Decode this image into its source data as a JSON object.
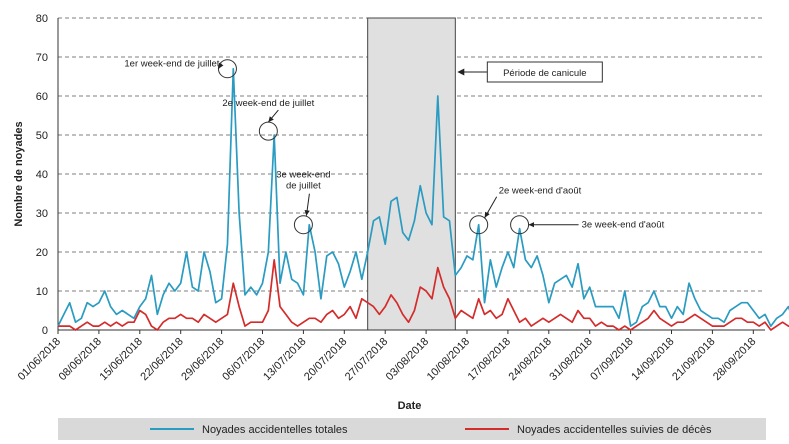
{
  "chart_data": {
    "type": "line",
    "xlabel": "Date",
    "ylabel": "Nombre de noyades",
    "ylim": [
      0,
      80
    ],
    "yticks": [
      0,
      10,
      20,
      30,
      40,
      50,
      60,
      70,
      80
    ],
    "grid": "horizontal dashed",
    "x_start": "2018-06-01",
    "x_end": "2018-09-30",
    "xtick_labels": [
      "01/06/2018",
      "08/06/2018",
      "15/06/2018",
      "22/06/2018",
      "29/06/2018",
      "06/07/2018",
      "13/07/2018",
      "20/07/2018",
      "27/07/2018",
      "03/08/2018",
      "10/08/2018",
      "17/08/2018",
      "24/08/2018",
      "31/08/2018",
      "07/09/2018",
      "14/09/2018",
      "21/09/2018",
      "28/09/2018"
    ],
    "legend_position": "bottom",
    "shaded_period": {
      "label": "Période de canicule",
      "start": "2018-07-24",
      "end": "2018-08-08",
      "color": "#e0e0e0"
    },
    "series": [
      {
        "name": "Noyades accidentelles totales",
        "color": "#2a9bc1",
        "values": [
          1,
          4,
          7,
          2,
          3,
          7,
          6,
          7,
          10,
          6,
          4,
          5,
          4,
          3,
          6,
          8,
          14,
          4,
          9,
          12,
          10,
          12,
          20,
          11,
          10,
          20,
          15,
          7,
          8,
          22,
          67,
          30,
          9,
          11,
          9,
          12,
          20,
          50,
          12,
          20,
          13,
          12,
          9,
          27,
          20,
          8,
          19,
          20,
          17,
          11,
          15,
          20,
          13,
          20,
          28,
          29,
          22,
          33,
          34,
          25,
          23,
          28,
          37,
          30,
          27,
          60,
          29,
          28,
          14,
          16,
          19,
          18,
          27,
          7,
          18,
          11,
          16,
          20,
          16,
          26,
          18,
          16,
          19,
          14,
          7,
          12,
          13,
          14,
          11,
          17,
          8,
          11,
          6,
          6,
          6,
          6,
          3,
          10,
          1,
          2,
          6,
          7,
          10,
          6,
          6,
          3,
          6,
          4,
          12,
          8,
          5,
          4,
          3,
          3,
          2,
          5,
          6,
          7,
          7,
          5,
          3,
          4,
          1,
          3,
          4,
          6,
          2,
          2,
          2,
          6
        ]
      },
      {
        "name": "Noyades accidentelles suivies de décès",
        "color": "#d42b2b",
        "values": [
          1,
          1,
          1,
          0,
          1,
          2,
          1,
          1,
          2,
          1,
          2,
          1,
          2,
          2,
          5,
          4,
          1,
          0,
          2,
          3,
          3,
          4,
          3,
          3,
          2,
          4,
          3,
          2,
          3,
          4,
          12,
          6,
          1,
          2,
          2,
          2,
          5,
          18,
          6,
          4,
          2,
          1,
          2,
          3,
          3,
          2,
          4,
          5,
          3,
          4,
          6,
          3,
          8,
          7,
          6,
          4,
          6,
          9,
          7,
          4,
          2,
          5,
          11,
          10,
          8,
          16,
          11,
          8,
          3,
          5,
          4,
          3,
          8,
          4,
          5,
          3,
          4,
          8,
          5,
          2,
          3,
          1,
          2,
          3,
          2,
          3,
          4,
          3,
          2,
          5,
          3,
          3,
          1,
          2,
          1,
          1,
          0,
          1,
          0,
          1,
          2,
          3,
          5,
          3,
          2,
          1,
          2,
          2,
          3,
          4,
          3,
          2,
          1,
          1,
          1,
          2,
          3,
          3,
          2,
          2,
          1,
          2,
          0,
          1,
          2,
          1,
          1,
          1,
          0,
          3
        ]
      }
    ],
    "annotations": [
      {
        "lines": [
          "1er week-end de juillet"
        ],
        "date": "2018-06-30",
        "value": 67
      },
      {
        "lines": [
          "2e week-end de juillet"
        ],
        "date": "2018-07-07",
        "value": 51
      },
      {
        "lines": [
          "3e week-end",
          "de juillet"
        ],
        "date": "2018-07-13",
        "value": 27
      },
      {
        "lines": [
          "2e week-end d'août"
        ],
        "date": "2018-08-12",
        "value": 27
      },
      {
        "lines": [
          "3e week-end d'août"
        ],
        "date": "2018-08-19",
        "value": 27
      }
    ]
  }
}
